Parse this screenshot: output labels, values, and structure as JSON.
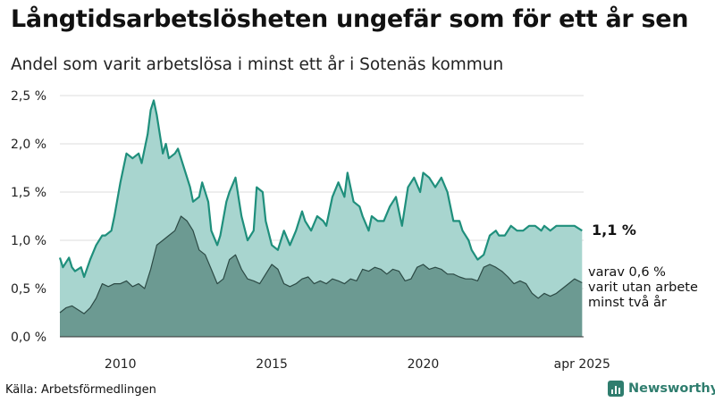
{
  "title": "Långtidsarbetslösheten ungefär som för ett år sen",
  "subtitle": "Andel som varit arbetslösa i minst ett år i Sotenäs kommun",
  "source": "Källa: Arbetsförmedlingen",
  "brand": {
    "name": "Newsworthy",
    "icon": "bar-chart-logo-icon"
  },
  "colors": {
    "total_fill": "#a8d5cf",
    "total_line": "#1f8f7c",
    "longterm_fill": "#6c9a92",
    "longterm_line": "#2c4a45"
  },
  "chart_data": {
    "type": "area",
    "xlim": [
      2008.0,
      2025.3
    ],
    "ylim": [
      0,
      2.5
    ],
    "y_ticks": [
      0,
      0.5,
      1.0,
      1.5,
      2.0,
      2.5
    ],
    "y_tick_labels": [
      "0,0 %",
      "0,5 %",
      "1,0 %",
      "1,5 %",
      "2,0 %",
      "2,5 %"
    ],
    "x_ticks": [
      2010,
      2015,
      2020,
      2025.25
    ],
    "x_tick_labels": [
      "2010",
      "2015",
      "2020",
      "apr 2025"
    ],
    "grid": "horizontal",
    "series": [
      {
        "id": "total",
        "label": "1,1 %",
        "x": [
          2008.0,
          2008.1,
          2008.3,
          2008.4,
          2008.5,
          2008.7,
          2008.8,
          2009.0,
          2009.2,
          2009.4,
          2009.5,
          2009.7,
          2009.8,
          2010.0,
          2010.2,
          2010.4,
          2010.6,
          2010.7,
          2010.9,
          2011.0,
          2011.1,
          2011.2,
          2011.4,
          2011.5,
          2011.6,
          2011.8,
          2011.9,
          2012.0,
          2012.1,
          2012.3,
          2012.4,
          2012.6,
          2012.7,
          2012.9,
          2013.0,
          2013.2,
          2013.3,
          2013.5,
          2013.6,
          2013.8,
          2013.9,
          2014.0,
          2014.2,
          2014.4,
          2014.5,
          2014.7,
          2014.8,
          2015.0,
          2015.2,
          2015.4,
          2015.6,
          2015.8,
          2016.0,
          2016.1,
          2016.3,
          2016.5,
          2016.7,
          2016.8,
          2017.0,
          2017.2,
          2017.4,
          2017.5,
          2017.7,
          2017.9,
          2018.0,
          2018.2,
          2018.3,
          2018.5,
          2018.7,
          2018.9,
          2019.1,
          2019.3,
          2019.5,
          2019.7,
          2019.9,
          2020.0,
          2020.2,
          2020.4,
          2020.6,
          2020.8,
          2021.0,
          2021.2,
          2021.3,
          2021.5,
          2021.6,
          2021.8,
          2022.0,
          2022.2,
          2022.4,
          2022.5,
          2022.7,
          2022.9,
          2023.1,
          2023.3,
          2023.5,
          2023.7,
          2023.9,
          2024.0,
          2024.2,
          2024.4,
          2024.6,
          2024.8,
          2025.0,
          2025.25
        ],
        "values": [
          0.82,
          0.72,
          0.82,
          0.72,
          0.68,
          0.72,
          0.62,
          0.8,
          0.95,
          1.05,
          1.05,
          1.1,
          1.25,
          1.6,
          1.9,
          1.85,
          1.9,
          1.8,
          2.1,
          2.35,
          2.45,
          2.3,
          1.9,
          2.0,
          1.85,
          1.9,
          1.95,
          1.85,
          1.75,
          1.55,
          1.4,
          1.45,
          1.6,
          1.4,
          1.1,
          0.95,
          1.05,
          1.4,
          1.5,
          1.65,
          1.45,
          1.25,
          1.0,
          1.1,
          1.55,
          1.5,
          1.2,
          0.95,
          0.9,
          1.1,
          0.95,
          1.1,
          1.3,
          1.2,
          1.1,
          1.25,
          1.2,
          1.15,
          1.45,
          1.6,
          1.45,
          1.7,
          1.4,
          1.35,
          1.25,
          1.1,
          1.25,
          1.2,
          1.2,
          1.35,
          1.45,
          1.15,
          1.55,
          1.65,
          1.5,
          1.7,
          1.65,
          1.55,
          1.65,
          1.5,
          1.2,
          1.2,
          1.1,
          1.0,
          0.9,
          0.8,
          0.85,
          1.05,
          1.1,
          1.05,
          1.05,
          1.15,
          1.1,
          1.1,
          1.15,
          1.15,
          1.1,
          1.15,
          1.1,
          1.15,
          1.15,
          1.15,
          1.15,
          1.1
        ],
        "end_label": "1,1 %"
      },
      {
        "id": "longterm",
        "label": "varav 0,6 % varit utan arbete minst två år",
        "x": [
          2008.0,
          2008.2,
          2008.4,
          2008.6,
          2008.8,
          2009.0,
          2009.2,
          2009.4,
          2009.6,
          2009.8,
          2010.0,
          2010.2,
          2010.4,
          2010.6,
          2010.8,
          2011.0,
          2011.2,
          2011.4,
          2011.6,
          2011.8,
          2012.0,
          2012.2,
          2012.4,
          2012.6,
          2012.8,
          2013.0,
          2013.2,
          2013.4,
          2013.6,
          2013.8,
          2014.0,
          2014.2,
          2014.4,
          2014.6,
          2014.8,
          2015.0,
          2015.2,
          2015.4,
          2015.6,
          2015.8,
          2016.0,
          2016.2,
          2016.4,
          2016.6,
          2016.8,
          2017.0,
          2017.2,
          2017.4,
          2017.6,
          2017.8,
          2018.0,
          2018.2,
          2018.4,
          2018.6,
          2018.8,
          2019.0,
          2019.2,
          2019.4,
          2019.6,
          2019.8,
          2020.0,
          2020.2,
          2020.4,
          2020.6,
          2020.8,
          2021.0,
          2021.2,
          2021.4,
          2021.6,
          2021.8,
          2022.0,
          2022.2,
          2022.4,
          2022.6,
          2022.8,
          2023.0,
          2023.2,
          2023.4,
          2023.6,
          2023.8,
          2024.0,
          2024.2,
          2024.4,
          2024.6,
          2024.8,
          2025.0,
          2025.25
        ],
        "values": [
          0.25,
          0.3,
          0.32,
          0.28,
          0.24,
          0.3,
          0.4,
          0.55,
          0.52,
          0.55,
          0.55,
          0.58,
          0.52,
          0.55,
          0.5,
          0.7,
          0.95,
          1.0,
          1.05,
          1.1,
          1.25,
          1.2,
          1.1,
          0.9,
          0.85,
          0.7,
          0.55,
          0.6,
          0.8,
          0.85,
          0.7,
          0.6,
          0.58,
          0.55,
          0.65,
          0.75,
          0.7,
          0.55,
          0.52,
          0.55,
          0.6,
          0.62,
          0.55,
          0.58,
          0.55,
          0.6,
          0.58,
          0.55,
          0.6,
          0.58,
          0.7,
          0.68,
          0.72,
          0.7,
          0.65,
          0.7,
          0.68,
          0.58,
          0.6,
          0.72,
          0.75,
          0.7,
          0.72,
          0.7,
          0.65,
          0.65,
          0.62,
          0.6,
          0.6,
          0.58,
          0.72,
          0.75,
          0.72,
          0.68,
          0.62,
          0.55,
          0.58,
          0.55,
          0.45,
          0.4,
          0.45,
          0.42,
          0.45,
          0.5,
          0.55,
          0.6,
          0.56
        ],
        "end_label_lines": [
          "varav 0,6 %",
          "varit utan arbete",
          "minst två år"
        ]
      }
    ]
  }
}
